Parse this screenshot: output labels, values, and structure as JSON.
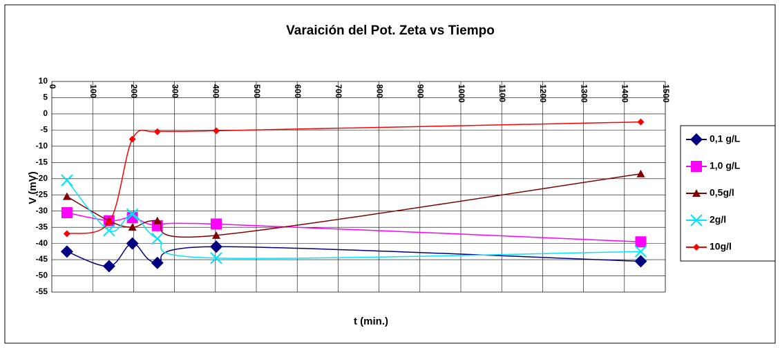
{
  "chart_data": {
    "type": "line",
    "title": "Varaición del Pot. Zeta vs Tiempo",
    "x_label": "t (min.)",
    "y_label": "V (mV)",
    "x": [
      37,
      140,
      197,
      258,
      402,
      1440
    ],
    "series": [
      {
        "name": "0,1 g/L",
        "color": "#000080",
        "marker": "diamond",
        "values": [
          -42.5,
          -47,
          -40,
          -46,
          -41,
          -45.5
        ]
      },
      {
        "name": "1,0 g/L",
        "color": "#ff00ff",
        "marker": "square",
        "values": [
          -30.5,
          -33,
          -32,
          -34.5,
          -34,
          -39.5
        ]
      },
      {
        "name": "0,5g/l",
        "color": "#800000",
        "marker": "triangle",
        "values": [
          -25.5,
          -33,
          -35,
          -33,
          -37.5,
          -18.5
        ]
      },
      {
        "name": "2g/l",
        "color": "#00e5ff",
        "marker": "x",
        "values": [
          -20.5,
          -36,
          -31,
          -38.5,
          -44.5,
          -42.5
        ]
      },
      {
        "name": "10g/l",
        "color": "#ff0000",
        "marker": "smalldiamond",
        "values": [
          -37,
          -33.5,
          -7.8,
          -5.5,
          -5.2,
          -2.5
        ]
      }
    ],
    "xlim": [
      0,
      1500
    ],
    "xticks": [
      0,
      100,
      200,
      300,
      400,
      500,
      600,
      700,
      800,
      900,
      1000,
      1100,
      1200,
      1300,
      1400,
      1500
    ],
    "ylim": [
      -55,
      10
    ],
    "yticks": [
      10,
      5,
      0,
      -5,
      -10,
      -15,
      -20,
      -25,
      -30,
      -35,
      -40,
      -45,
      -50,
      -55
    ],
    "grid": true,
    "legend": "right"
  }
}
